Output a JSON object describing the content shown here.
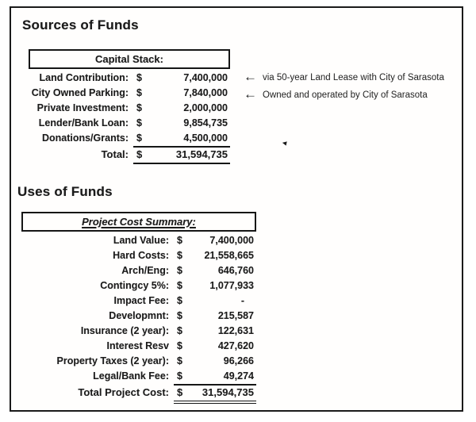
{
  "currency": "$",
  "sources": {
    "heading": "Sources of Funds",
    "table": {
      "title": "Capital Stack:",
      "rows": [
        {
          "label": "Land Contribution:",
          "amount": "7,400,000"
        },
        {
          "label": "City Owned Parking:",
          "amount": "7,840,000"
        },
        {
          "label": "Private Investment:",
          "amount": "2,000,000"
        },
        {
          "label": "Lender/Bank Loan:",
          "amount": "9,854,735"
        },
        {
          "label": "Donations/Grants:",
          "amount": "4,500,000"
        },
        {
          "label": "Total:",
          "amount": "31,594,735"
        }
      ]
    },
    "annotations": [
      {
        "arrow": "←",
        "text": "via 50-year Land Lease with City of Sarasota"
      },
      {
        "arrow": "←",
        "text": "Owned and operated by City of Sarasota"
      }
    ]
  },
  "uses": {
    "heading": "Uses of Funds",
    "table": {
      "title": "Project Cost Summary:",
      "rows": [
        {
          "label": "Land Value:",
          "amount": "7,400,000"
        },
        {
          "label": "Hard Costs:",
          "amount": "21,558,665"
        },
        {
          "label": "Arch/Eng:",
          "amount": "646,760"
        },
        {
          "label": "Contingcy 5%:",
          "amount": "1,077,933"
        },
        {
          "label": "Impact Fee:",
          "amount": "-"
        },
        {
          "label": "Developmnt:",
          "amount": "215,587"
        },
        {
          "label": "Insurance (2 year):",
          "amount": "122,631"
        },
        {
          "label": "Interest Resv",
          "amount": "427,620"
        },
        {
          "label": "Property Taxes (2 year):",
          "amount": "96,266"
        },
        {
          "label": "Legal/Bank Fee:",
          "amount": "49,274"
        },
        {
          "label": "Total Project Cost:",
          "amount": "31,594,735"
        }
      ]
    }
  },
  "marks": {
    "stray_arrow": "◄"
  },
  "colors": {
    "ink": "#1b1b1b",
    "background": "#ffffff"
  }
}
